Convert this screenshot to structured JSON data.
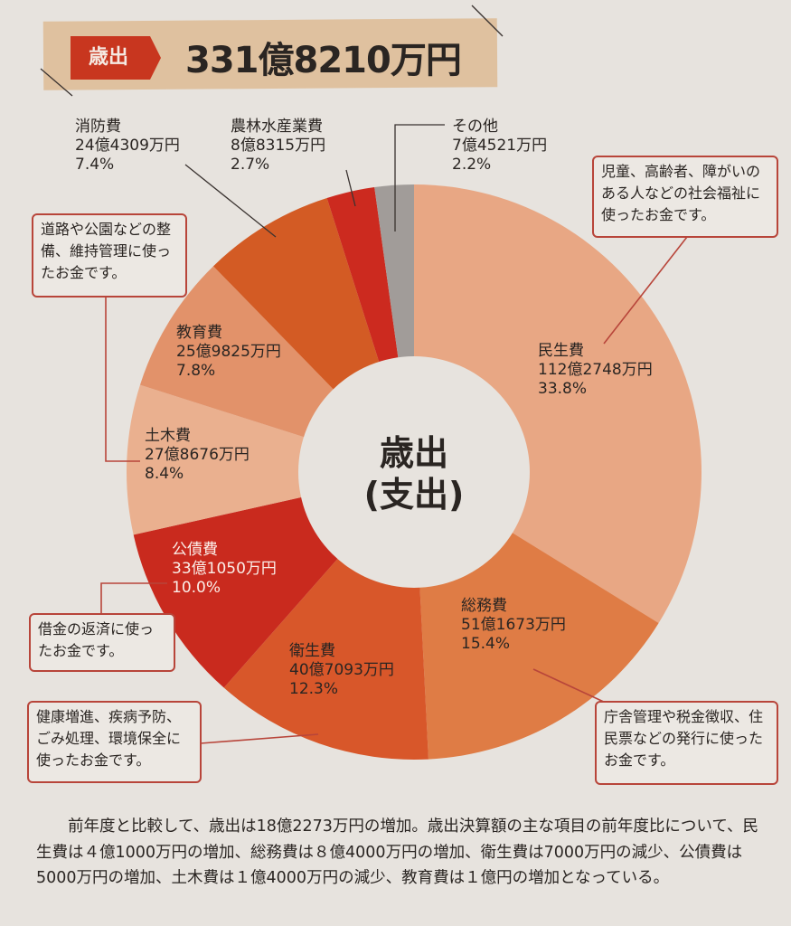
{
  "header": {
    "tag": "歳出",
    "total": "331億8210万円"
  },
  "center": {
    "line1": "歳出",
    "line2": "(支出)"
  },
  "chart_data": {
    "type": "pie",
    "title": "歳出(支出)",
    "total": "331億8210万円",
    "slices": [
      {
        "name": "民生費",
        "amount": "112億2748万円",
        "percent": 33.8,
        "color": "#e8a784"
      },
      {
        "name": "総務費",
        "amount": "51億1673万円",
        "percent": 15.4,
        "color": "#df7c45"
      },
      {
        "name": "衛生費",
        "amount": "40億7093万円",
        "percent": 12.3,
        "color": "#d8572a"
      },
      {
        "name": "公債費",
        "amount": "33億1050万円",
        "percent": 10.0,
        "color": "#c92a1e"
      },
      {
        "name": "土木費",
        "amount": "27億8676万円",
        "percent": 8.4,
        "color": "#eab08f"
      },
      {
        "name": "教育費",
        "amount": "25億9825万円",
        "percent": 7.8,
        "color": "#e2926a"
      },
      {
        "name": "消防費",
        "amount": "24億4309万円",
        "percent": 7.4,
        "color": "#d35b24"
      },
      {
        "name": "農林水産業費",
        "amount": "8億8315万円",
        "percent": 2.7,
        "color": "#cc2a1f"
      },
      {
        "name": "その他",
        "amount": "7億4521万円",
        "percent": 2.2,
        "color": "#a19c99"
      }
    ]
  },
  "callouts": {
    "welfare": "児童、高齢者、障がいのある人などの社会福祉に使ったお金です。",
    "roads": "道路や公園などの整備、維持管理に使ったお金です。",
    "debt": "借金の返済に使ったお金です。",
    "health": "健康増進、疾病予防、ごみ処理、環境保全に使ったお金です。",
    "general": "庁舎管理や税金徴収、住民票などの発行に使ったお金です。"
  },
  "note": "前年度と比較して、歳出は18億2273万円の増加。歳出決算額の主な項目の前年度比について、民生費は４億1000万円の増加、総務費は８億4000万円の増加、衛生費は7000万円の減少、公債費は5000万円の増加、土木費は１億4000万円の減少、教育費は１億円の増加となっている。"
}
